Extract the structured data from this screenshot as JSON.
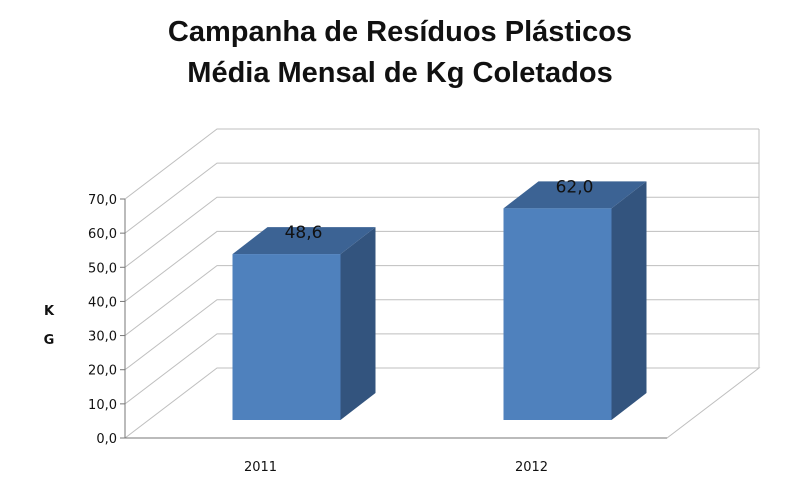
{
  "chart_data": {
    "type": "bar",
    "title": [
      "Campanha de Resíduos Plásticos",
      "Média Mensal de Kg Coletados"
    ],
    "categories": [
      "2011",
      "2012"
    ],
    "values": [
      48.6,
      62.0
    ],
    "data_labels": [
      "48,6",
      "62,0"
    ],
    "ylabel": [
      "K",
      "G"
    ],
    "xlabel": "",
    "ylim": [
      0,
      70
    ],
    "ytick_labels": [
      "0,0",
      "10,0",
      "20,0",
      "30,0",
      "40,0",
      "50,0",
      "60,0",
      "70,0"
    ],
    "grid": true,
    "legend": "none",
    "style": "3d-column",
    "colors": {
      "bar_front": "#4F81BD",
      "bar_side": "#33547E",
      "bar_top": "#3C6394",
      "grid": "#BFBFBF"
    }
  }
}
